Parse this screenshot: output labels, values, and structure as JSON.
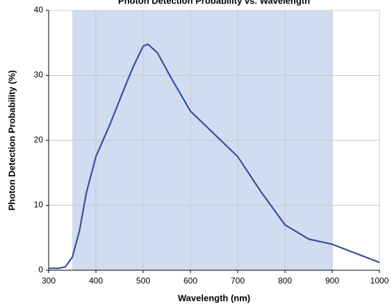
{
  "chart_data": {
    "type": "line",
    "title": "Photon Detection Probability vs. Wavelength",
    "xlabel": "Wavelength (nm)",
    "ylabel": "Photon Detection Probability (%)",
    "x": [
      300,
      320,
      335,
      350,
      365,
      380,
      400,
      430,
      460,
      480,
      500,
      510,
      530,
      560,
      600,
      650,
      700,
      750,
      800,
      850,
      900,
      950,
      1000
    ],
    "series": [
      {
        "name": "Photon Detection Probability",
        "color": "#3a4f9e",
        "values": [
          0.3,
          0.3,
          0.5,
          2,
          6,
          12,
          17.5,
          22.5,
          28,
          31.5,
          34.5,
          34.8,
          33.5,
          29.5,
          24.5,
          21,
          17.5,
          12,
          7,
          4.8,
          4,
          2.6,
          1.2
        ]
      }
    ],
    "shaded_range": [
      350,
      900
    ],
    "shade_color": "#d0dcf0",
    "xlim": [
      300,
      1000
    ],
    "xticks": [
      300,
      400,
      500,
      600,
      700,
      800,
      900,
      1000
    ],
    "ylim": [
      0,
      40
    ],
    "yticks": [
      0,
      10,
      20,
      30,
      40
    ],
    "grid": true
  }
}
